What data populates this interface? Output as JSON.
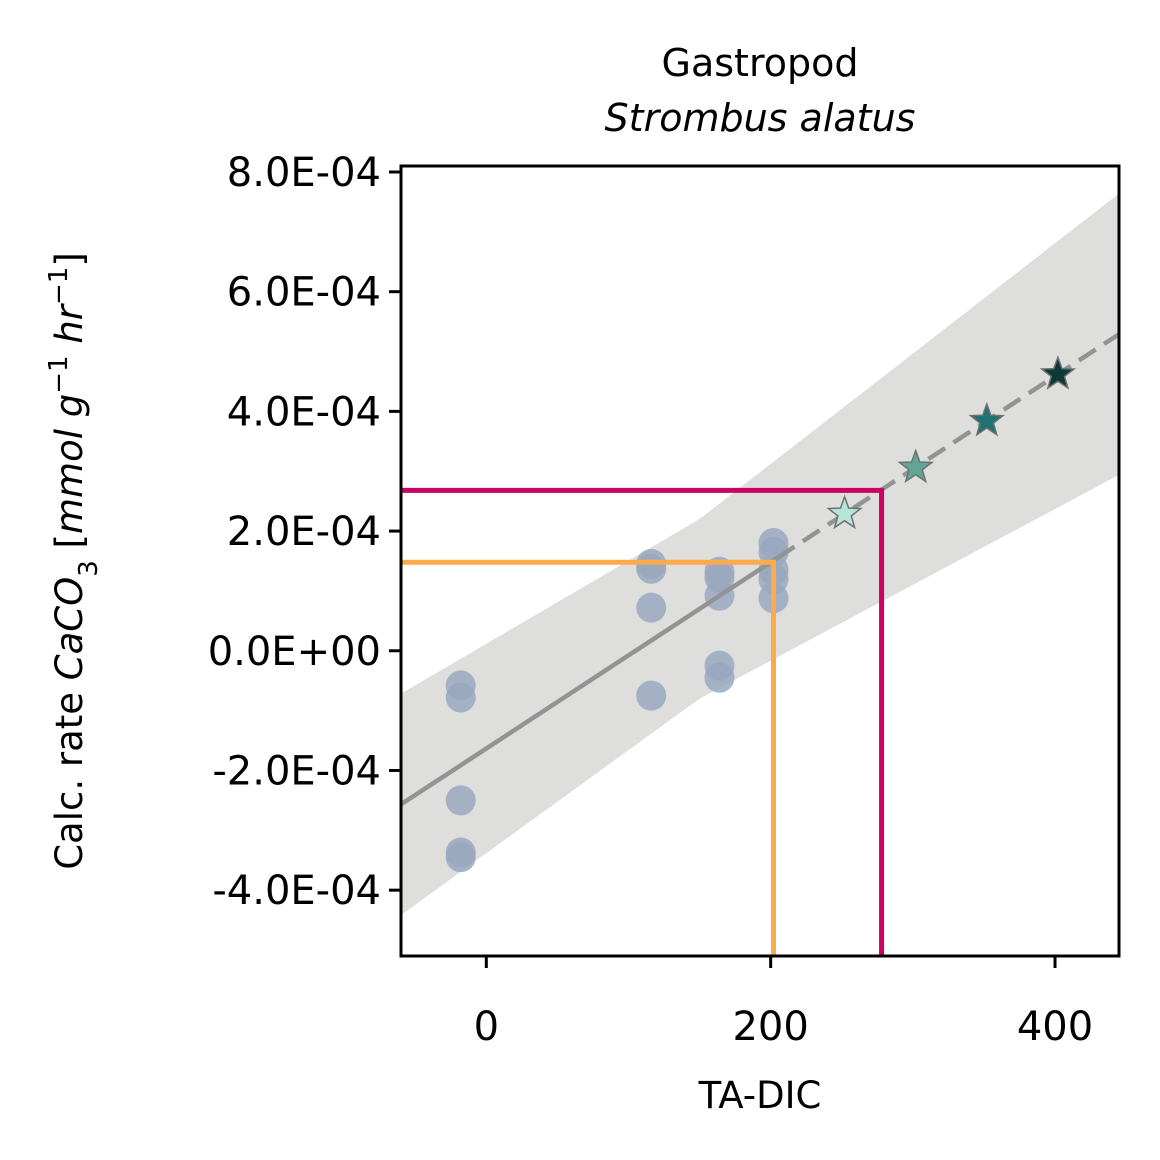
{
  "chart_data": {
    "type": "scatter",
    "title": "Gastropod",
    "subtitle": "Strombus alatus",
    "xlabel": "TA-DIC",
    "ylabel_prefix": "Calc. rate ",
    "ylabel_species": "CaCO",
    "ylabel_sub": "3",
    "ylabel_unit_open": " [",
    "ylabel_unit_mid": "mmol g",
    "ylabel_exp1": "−1",
    "ylabel_unit_hr": " hr",
    "ylabel_exp2": "−1",
    "ylabel_unit_close": "]",
    "xlim": [
      -60,
      445
    ],
    "ylim": [
      -0.00051,
      0.00081
    ],
    "x_ticks": [
      0,
      200,
      400
    ],
    "x_tick_labels": [
      "0",
      "200",
      "400"
    ],
    "y_ticks": [
      0.0008,
      0.0006,
      0.0004,
      0.0002,
      0.0,
      -0.0002,
      -0.0004
    ],
    "y_tick_labels": [
      "8.0E-04",
      "6.0E-04",
      "4.0E-04",
      "2.0E-04",
      "0.0E+00",
      "-2.0E-04",
      "-4.0E-04"
    ],
    "observations": {
      "color": "#9aa8bf",
      "points": [
        {
          "x": -18,
          "y": -5.8e-05
        },
        {
          "x": -18,
          "y": -7.8e-05
        },
        {
          "x": -18,
          "y": -0.00025
        },
        {
          "x": -18,
          "y": -0.000337
        },
        {
          "x": -18,
          "y": -0.000345
        },
        {
          "x": 116,
          "y": 0.000145
        },
        {
          "x": 116,
          "y": 0.000137
        },
        {
          "x": 116,
          "y": 7.2e-05
        },
        {
          "x": 116,
          "y": -7.5e-05
        },
        {
          "x": 164,
          "y": 0.000132
        },
        {
          "x": 164,
          "y": 0.000122
        },
        {
          "x": 164,
          "y": 9.2e-05
        },
        {
          "x": 164,
          "y": -2.5e-05
        },
        {
          "x": 164,
          "y": -4.5e-05
        },
        {
          "x": 202,
          "y": 0.00018
        },
        {
          "x": 202,
          "y": 0.000165
        },
        {
          "x": 202,
          "y": 0.000135
        },
        {
          "x": 202,
          "y": 0.00012
        },
        {
          "x": 202,
          "y": 8.8e-05
        }
      ]
    },
    "regression": {
      "color": "#939393",
      "slope": 1.5556e-06,
      "intercept": -0.0001633,
      "solid_range": [
        -60,
        205
      ],
      "dashed_range": [
        205,
        445
      ],
      "ci_color": "#dededd",
      "ci_halfwidth_at": [
        {
          "x": -60,
          "y": 0.000185
        },
        {
          "x": 150,
          "y": 0.00015
        },
        {
          "x": 445,
          "y": 0.000235
        }
      ]
    },
    "projections": {
      "points": [
        {
          "x": 252,
          "y": 0.000229,
          "color": "#b5e6da"
        },
        {
          "x": 302,
          "y": 0.000306,
          "color": "#5fa697"
        },
        {
          "x": 352,
          "y": 0.000384,
          "color": "#1d7372"
        },
        {
          "x": 402,
          "y": 0.000462,
          "color": "#0d3a37"
        }
      ],
      "edge_color": "#6e7170"
    },
    "reference_lines": [
      {
        "x": 202,
        "y": 0.000148,
        "color": "#fbab4b"
      },
      {
        "x": 278,
        "y": 0.000268,
        "color": "#c9035f"
      }
    ]
  }
}
